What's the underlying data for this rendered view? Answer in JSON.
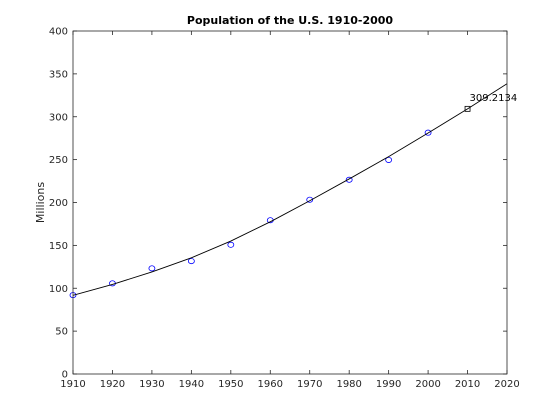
{
  "chart_data": {
    "type": "scatter",
    "title": "Population of the U.S. 1910-2000",
    "xlabel": "",
    "ylabel": "Millions",
    "xlim": [
      1910,
      2020
    ],
    "ylim": [
      0,
      400
    ],
    "xticks": [
      1910,
      1920,
      1930,
      1940,
      1950,
      1960,
      1970,
      1980,
      1990,
      2000,
      2010,
      2020
    ],
    "yticks": [
      0,
      50,
      100,
      150,
      200,
      250,
      300,
      350,
      400
    ],
    "grid": false,
    "legend": "none",
    "series": [
      {
        "type": "scatter",
        "marker": "circle",
        "color": "#0000ff",
        "x": [
          1910,
          1920,
          1930,
          1940,
          1950,
          1960,
          1970,
          1980,
          1990,
          2000
        ],
        "y": [
          91.972,
          105.711,
          123.203,
          131.669,
          150.697,
          179.323,
          203.212,
          226.505,
          249.633,
          281.422
        ]
      },
      {
        "type": "line",
        "color": "#000000",
        "x": [
          1910,
          1920,
          1930,
          1940,
          1950,
          1960,
          1970,
          1980,
          1990,
          2000,
          2010,
          2020
        ],
        "y": [
          91.8,
          104.5,
          119.0,
          135.5,
          155.0,
          177.5,
          202.0,
          227.5,
          253.5,
          281.0,
          309.2134,
          338.5
        ]
      },
      {
        "type": "scatter",
        "marker": "square",
        "color": "#000000",
        "x": [
          2010
        ],
        "y": [
          309.2134
        ]
      }
    ],
    "annotations": [
      {
        "x": 2010,
        "y": 309.2134,
        "text": "309.2134"
      }
    ],
    "colors": {
      "axis": "#262626",
      "data_marker": "#0000ff",
      "fit_line": "#000000"
    }
  }
}
